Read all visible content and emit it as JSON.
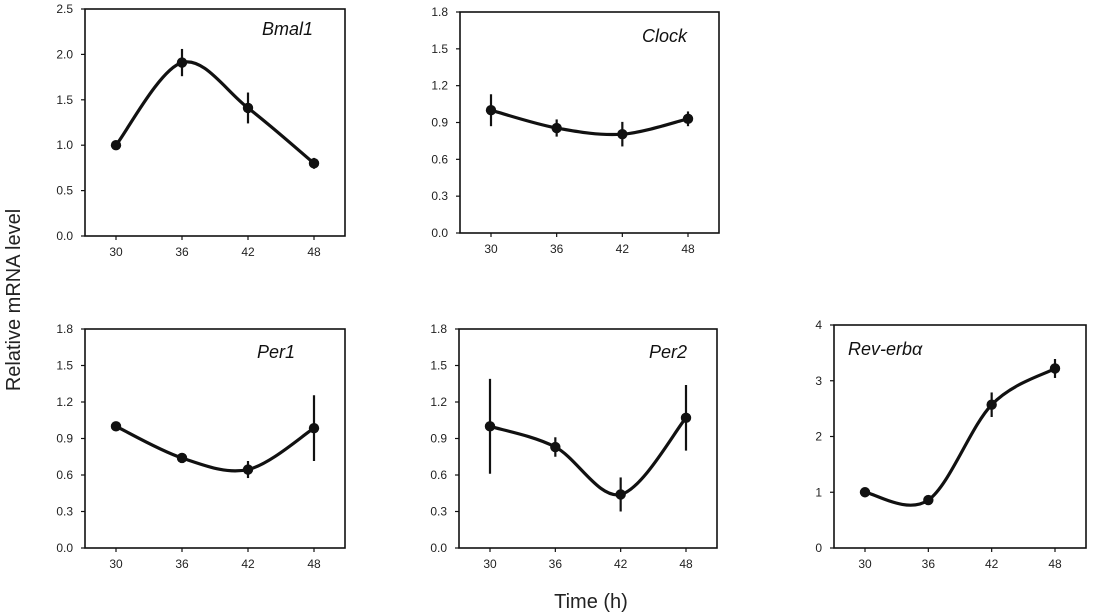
{
  "figure": {
    "ylabel": "Relative mRNA level",
    "xlabel": "Time (h)"
  },
  "chart_data": [
    {
      "type": "line",
      "title": "Bmal1",
      "x": [
        30,
        36,
        42,
        48
      ],
      "y": [
        1.0,
        1.91,
        1.41,
        0.8
      ],
      "err": [
        0.03,
        0.15,
        0.17,
        0.06
      ],
      "ylim": [
        0,
        2.5
      ],
      "yticks": [
        "0.0",
        "0.5",
        "1.0",
        "1.5",
        "2.0",
        "2.5"
      ],
      "xticks": [
        "30",
        "36",
        "42",
        "48"
      ]
    },
    {
      "type": "line",
      "title": "Clock",
      "x": [
        30,
        36,
        42,
        48
      ],
      "y": [
        1.0,
        0.855,
        0.805,
        0.93
      ],
      "err": [
        0.13,
        0.07,
        0.1,
        0.06
      ],
      "ylim": [
        0,
        1.8
      ],
      "yticks": [
        "0.0",
        "0.3",
        "0.6",
        "0.9",
        "1.2",
        "1.5",
        "1.8"
      ],
      "xticks": [
        "30",
        "36",
        "42",
        "48"
      ]
    },
    {
      "type": "line",
      "title": "Per1",
      "x": [
        30,
        36,
        42,
        48
      ],
      "y": [
        1.0,
        0.74,
        0.645,
        0.985
      ],
      "err": [
        0.03,
        0.03,
        0.07,
        0.27
      ],
      "ylim": [
        0,
        1.8
      ],
      "yticks": [
        "0.0",
        "0.3",
        "0.6",
        "0.9",
        "1.2",
        "1.5",
        "1.8"
      ],
      "xticks": [
        "30",
        "36",
        "42",
        "48"
      ]
    },
    {
      "type": "line",
      "title": "Per2",
      "x": [
        30,
        36,
        42,
        48
      ],
      "y": [
        1.0,
        0.83,
        0.44,
        1.07
      ],
      "err": [
        0.39,
        0.08,
        0.14,
        0.27
      ],
      "ylim": [
        0,
        1.8
      ],
      "yticks": [
        "0.0",
        "0.3",
        "0.6",
        "0.9",
        "1.2",
        "1.5",
        "1.8"
      ],
      "xticks": [
        "30",
        "36",
        "42",
        "48"
      ]
    },
    {
      "type": "line",
      "title": "Rev-erbα",
      "x": [
        30,
        36,
        42,
        48
      ],
      "y": [
        1.0,
        0.86,
        2.57,
        3.22
      ],
      "err": [
        0.03,
        0.05,
        0.22,
        0.17
      ],
      "ylim": [
        0,
        4
      ],
      "yticks": [
        "0",
        "1",
        "2",
        "3",
        "4"
      ],
      "xticks": [
        "30",
        "36",
        "42",
        "48"
      ]
    }
  ]
}
